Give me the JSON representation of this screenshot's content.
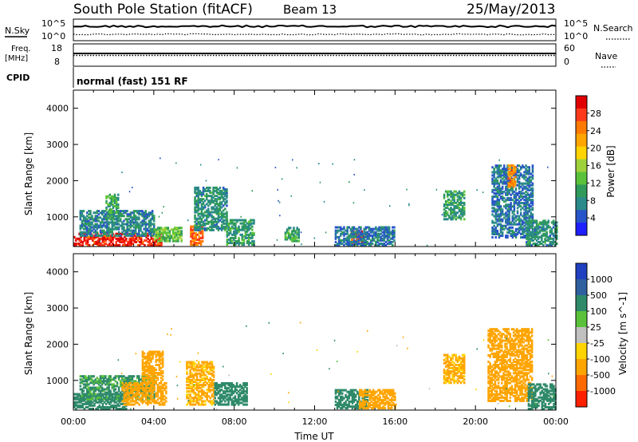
{
  "header": {
    "station": "South Pole Station (fitACF)",
    "beam": "Beam 13",
    "date": "25/May/2013"
  },
  "top_panels": {
    "nsky_label": "N.Sky",
    "nsky_ticks": [
      "10^5",
      "10^0"
    ],
    "nsearch_label": "N.Search",
    "nsearch_ticks": [
      "10^5",
      "10^0"
    ],
    "freq_label_line1": "Freq.",
    "freq_label_line2": "[MHz]",
    "freq_ticks": [
      "18",
      "8"
    ],
    "nave_label": "Nave",
    "nave_ticks": [
      "60",
      "0"
    ],
    "cpid_label": "CPID",
    "cpid_text": "normal (fast) 151 RF"
  },
  "chart_data": [
    {
      "type": "heatmap",
      "panel": "power",
      "ylabel": "Slant Range [km]",
      "ylim": [
        180,
        4500
      ],
      "yticks": [
        "1000",
        "2000",
        "3000",
        "4000"
      ],
      "xlim_hours": [
        0,
        24
      ],
      "colorbar": {
        "title": "Power [dB]",
        "ticks": [
          "28",
          "24",
          "20",
          "16",
          "12",
          "8",
          "4"
        ],
        "range": [
          0,
          30
        ],
        "colors": [
          "#1f1fff",
          "#2855c9",
          "#2b8a8a",
          "#2f9a5a",
          "#5ac23a",
          "#9fd23a",
          "#ffd400",
          "#ffa500",
          "#ff7a00",
          "#ff3a1a",
          "#e00000"
        ]
      },
      "regions": [
        {
          "t0": 0.0,
          "t1": 4.4,
          "r0": 180,
          "r1": 500,
          "v": 27
        },
        {
          "t0": 0.3,
          "t1": 4.0,
          "r0": 450,
          "r1": 1150,
          "v": 7
        },
        {
          "t0": 1.6,
          "t1": 2.2,
          "r0": 900,
          "r1": 1600,
          "v": 10
        },
        {
          "t0": 4.0,
          "t1": 5.4,
          "r0": 300,
          "r1": 700,
          "v": 12
        },
        {
          "t0": 5.8,
          "t1": 6.4,
          "r0": 200,
          "r1": 700,
          "v": 24
        },
        {
          "t0": 6.0,
          "t1": 7.6,
          "r0": 600,
          "r1": 1800,
          "v": 8
        },
        {
          "t0": 7.6,
          "t1": 9.0,
          "r0": 200,
          "r1": 900,
          "v": 9
        },
        {
          "t0": 10.5,
          "t1": 11.2,
          "r0": 300,
          "r1": 700,
          "v": 10
        },
        {
          "t0": 13.8,
          "t1": 14.4,
          "r0": 200,
          "r1": 600,
          "v": 26
        },
        {
          "t0": 13.0,
          "t1": 16.0,
          "r0": 180,
          "r1": 700,
          "v": 6
        },
        {
          "t0": 18.4,
          "t1": 19.4,
          "r0": 900,
          "r1": 1700,
          "v": 9
        },
        {
          "t0": 20.8,
          "t1": 22.8,
          "r0": 400,
          "r1": 2400,
          "v": 6
        },
        {
          "t0": 21.6,
          "t1": 22.0,
          "r0": 1800,
          "r1": 2400,
          "v": 22
        },
        {
          "t0": 22.5,
          "t1": 24.0,
          "r0": 180,
          "r1": 900,
          "v": 8
        }
      ]
    },
    {
      "type": "heatmap",
      "panel": "velocity",
      "ylabel": "Slant Range [km]",
      "ylim": [
        180,
        4500
      ],
      "yticks": [
        "1000",
        "2000",
        "3000",
        "4000"
      ],
      "xlabel": "Time UT",
      "xticks": [
        "00:00",
        "04:00",
        "08:00",
        "12:00",
        "16:00",
        "20:00",
        "00:00"
      ],
      "xlim_hours": [
        0,
        24
      ],
      "colorbar": {
        "title": "Velocity [m s^-1]",
        "ticks": [
          "1000",
          "500",
          "100",
          "25",
          "-25",
          "-100",
          "-500",
          "-1000"
        ],
        "colors": [
          "#2040c0",
          "#3060a0",
          "#2f8a6a",
          "#5ac23a",
          "#c0c0c0",
          "#ffd400",
          "#ffa500",
          "#ff6a00",
          "#ff2000"
        ]
      },
      "regions": [
        {
          "t0": 0.0,
          "t1": 2.6,
          "r0": 180,
          "r1": 600,
          "v": 200
        },
        {
          "t0": 0.3,
          "t1": 4.0,
          "r0": 450,
          "r1": 1100,
          "v": 150
        },
        {
          "t0": 2.4,
          "t1": 4.6,
          "r0": 300,
          "r1": 900,
          "v": -200
        },
        {
          "t0": 3.4,
          "t1": 4.4,
          "r0": 900,
          "r1": 1800,
          "v": -300
        },
        {
          "t0": 5.6,
          "t1": 7.0,
          "r0": 300,
          "r1": 1500,
          "v": -150
        },
        {
          "t0": 7.0,
          "t1": 8.6,
          "r0": 300,
          "r1": 900,
          "v": 200
        },
        {
          "t0": 13.0,
          "t1": 14.6,
          "r0": 200,
          "r1": 700,
          "v": 300
        },
        {
          "t0": 14.2,
          "t1": 16.0,
          "r0": 200,
          "r1": 700,
          "v": -400
        },
        {
          "t0": 18.4,
          "t1": 19.4,
          "r0": 900,
          "r1": 1700,
          "v": -150
        },
        {
          "t0": 20.6,
          "t1": 22.8,
          "r0": 400,
          "r1": 2400,
          "v": -200
        },
        {
          "t0": 22.6,
          "t1": 24.0,
          "r0": 180,
          "r1": 900,
          "v": 250
        }
      ]
    }
  ]
}
